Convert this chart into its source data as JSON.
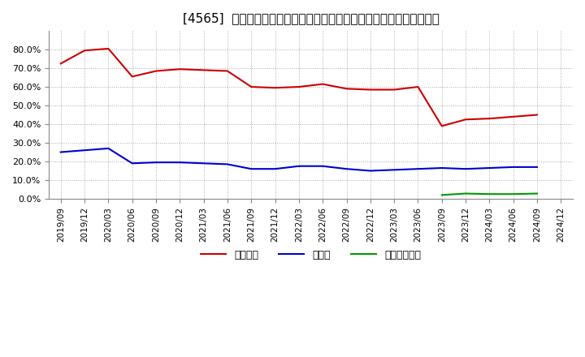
{
  "title": "[4565]  自己資本、のれん、繰延税金資産の総資産に対する比率の推移",
  "title_bracket": "[4565]",
  "x_labels": [
    "2019/09",
    "2019/12",
    "2020/03",
    "2020/06",
    "2020/09",
    "2020/12",
    "2021/03",
    "2021/06",
    "2021/09",
    "2021/12",
    "2022/03",
    "2022/06",
    "2022/09",
    "2022/12",
    "2023/03",
    "2023/06",
    "2023/09",
    "2023/12",
    "2024/03",
    "2024/06",
    "2024/09",
    "2024/12"
  ],
  "equity": [
    72.5,
    79.5,
    80.5,
    65.5,
    68.5,
    69.5,
    69.0,
    68.5,
    60.0,
    59.5,
    60.0,
    61.5,
    59.0,
    58.5,
    58.5,
    60.0,
    39.0,
    42.5,
    43.0,
    44.0,
    45.0,
    null
  ],
  "goodwill": [
    25.0,
    26.0,
    27.0,
    19.0,
    19.5,
    19.5,
    19.0,
    18.5,
    16.0,
    16.0,
    17.5,
    17.5,
    16.0,
    15.0,
    15.5,
    16.0,
    16.5,
    16.0,
    16.5,
    17.0,
    17.0,
    null
  ],
  "deferred_tax": [
    null,
    null,
    null,
    null,
    null,
    null,
    null,
    null,
    null,
    null,
    null,
    null,
    null,
    null,
    null,
    null,
    2.0,
    2.8,
    2.5,
    2.5,
    2.8,
    null
  ],
  "equity_color": "#cc0000",
  "goodwill_color": "#0000cc",
  "deferred_tax_color": "#009900",
  "legend_labels": [
    "自己資本",
    "のれん",
    "繰延税金資産"
  ],
  "ylim": [
    0,
    90
  ],
  "yticks": [
    0,
    10,
    20,
    30,
    40,
    50,
    60,
    70,
    80
  ],
  "background_color": "#ffffff",
  "grid_color": "#aaaaaa",
  "title_fontsize": 11
}
